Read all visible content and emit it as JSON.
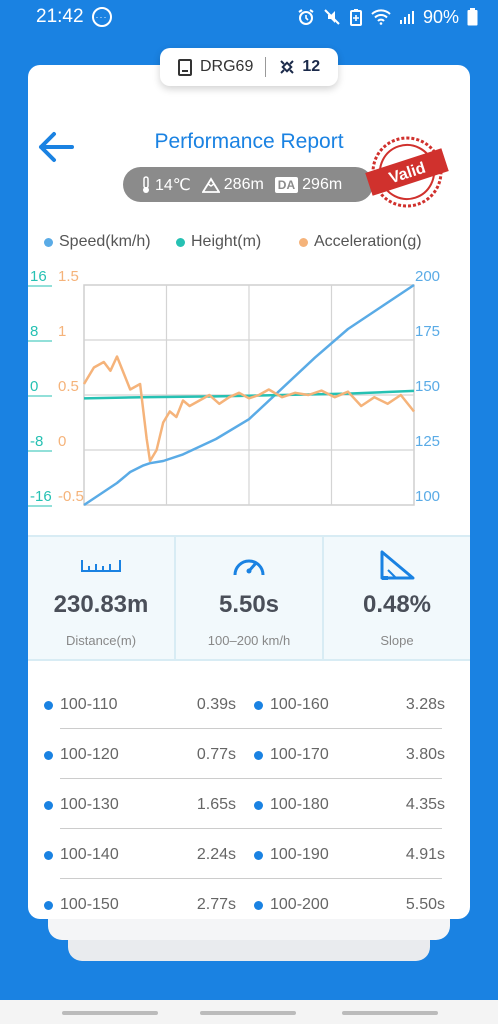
{
  "status": {
    "time": "21:42",
    "battery": "90%"
  },
  "device": {
    "name": "DRG69",
    "count": "12"
  },
  "header": {
    "title": "Performance Report"
  },
  "environment": {
    "temperature": "14℃",
    "altitude": "286m",
    "da_label": "DA",
    "density_altitude": "296m"
  },
  "stamp": {
    "text": "Valid",
    "color": "#d0312d"
  },
  "legend": [
    {
      "label": "Speed(km/h)",
      "color": "#5aabe6"
    },
    {
      "label": "Height(m)",
      "color": "#26c1b3"
    },
    {
      "label": "Acceleration(g)",
      "color": "#f5b37a"
    }
  ],
  "chart_data": {
    "type": "line",
    "left_axis_height_ticks": [
      "16",
      "8",
      "0",
      "-8",
      "-16"
    ],
    "left_axis_accel_ticks": [
      "1.5",
      "1",
      "0.5",
      "0",
      "-0.5"
    ],
    "right_axis_speed_ticks": [
      "200",
      "175",
      "150",
      "125",
      "100"
    ],
    "series": [
      {
        "name": "Speed(km/h)",
        "axis": "right",
        "ylim": [
          100,
          200
        ],
        "x": [
          0,
          0.05,
          0.1,
          0.14,
          0.18,
          0.2,
          0.24,
          0.3,
          0.4,
          0.5,
          0.6,
          0.7,
          0.8,
          0.9,
          1.0
        ],
        "y": [
          100,
          105,
          110,
          115,
          118,
          119,
          120,
          123,
          130,
          139,
          153,
          167,
          180,
          190,
          200
        ]
      },
      {
        "name": "Height(m)",
        "axis": "left",
        "ylim": [
          -16,
          16
        ],
        "x": [
          0,
          0.2,
          0.4,
          0.6,
          0.8,
          1.0
        ],
        "y": [
          -0.5,
          -0.3,
          -0.2,
          0.0,
          0.2,
          0.6
        ]
      },
      {
        "name": "Acceleration(g)",
        "axis": "left2",
        "ylim": [
          -0.5,
          1.5
        ],
        "x": [
          0,
          0.03,
          0.06,
          0.08,
          0.1,
          0.12,
          0.14,
          0.17,
          0.19,
          0.2,
          0.22,
          0.24,
          0.26,
          0.28,
          0.3,
          0.32,
          0.35,
          0.38,
          0.41,
          0.44,
          0.47,
          0.5,
          0.53,
          0.56,
          0.6,
          0.64,
          0.68,
          0.72,
          0.76,
          0.8,
          0.84,
          0.88,
          0.92,
          0.96,
          1.0
        ],
        "y": [
          0.6,
          0.75,
          0.8,
          0.72,
          0.85,
          0.7,
          0.55,
          0.6,
          0.1,
          -0.1,
          0.0,
          0.25,
          0.35,
          0.3,
          0.45,
          0.4,
          0.45,
          0.5,
          0.42,
          0.48,
          0.52,
          0.47,
          0.5,
          0.55,
          0.48,
          0.52,
          0.5,
          0.54,
          0.48,
          0.53,
          0.4,
          0.48,
          0.42,
          0.5,
          0.35
        ]
      }
    ]
  },
  "stats": [
    {
      "value": "230.83m",
      "label": "Distance(m)",
      "icon": "ruler-icon"
    },
    {
      "value": "5.50s",
      "label": "100–200 km/h",
      "icon": "speedometer-icon"
    },
    {
      "value": "0.48%",
      "label": "Slope",
      "icon": "slope-icon"
    }
  ],
  "intervals": [
    {
      "left_range": "100-110",
      "left_time": "0.39s",
      "right_range": "100-160",
      "right_time": "3.28s"
    },
    {
      "left_range": "100-120",
      "left_time": "0.77s",
      "right_range": "100-170",
      "right_time": "3.80s"
    },
    {
      "left_range": "100-130",
      "left_time": "1.65s",
      "right_range": "100-180",
      "right_time": "4.35s"
    },
    {
      "left_range": "100-140",
      "left_time": "2.24s",
      "right_range": "100-190",
      "right_time": "4.91s"
    },
    {
      "left_range": "100-150",
      "left_time": "2.77s",
      "right_range": "100-200",
      "right_time": "5.50s"
    }
  ]
}
